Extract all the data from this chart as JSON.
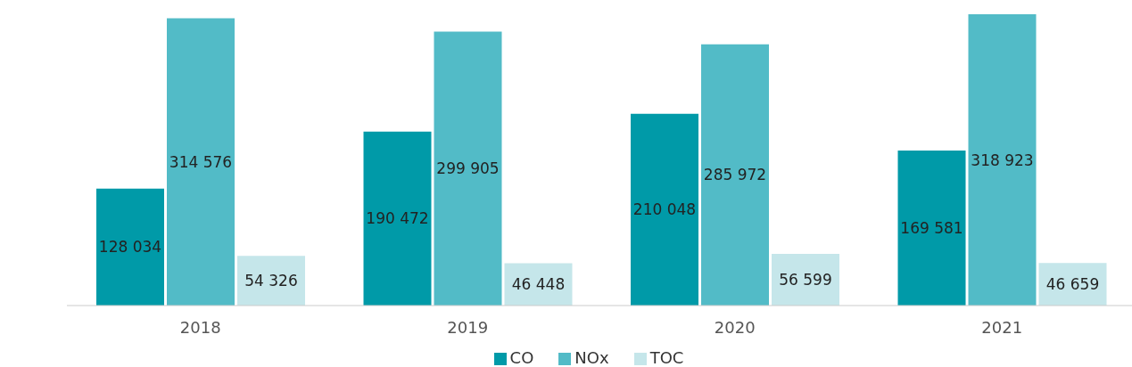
{
  "chart_data": {
    "type": "bar",
    "categories": [
      "2018",
      "2019",
      "2020",
      "2021"
    ],
    "series": [
      {
        "name": "CO",
        "color": "#009aa8",
        "values": [
          128034,
          190472,
          210048,
          169581
        ],
        "value_labels": [
          "128 034",
          "190 472",
          "210 048",
          "169 581"
        ]
      },
      {
        "name": "NOx",
        "color": "#52bbc7",
        "values": [
          314576,
          299905,
          285972,
          318923
        ],
        "value_labels": [
          "314 576",
          "299 905",
          "285 972",
          "318 923"
        ]
      },
      {
        "name": "TOC",
        "color": "#c5e6ea",
        "values": [
          54326,
          46448,
          56599,
          46659
        ],
        "value_labels": [
          "54 326",
          "46 448",
          "56 599",
          "46 659"
        ]
      }
    ],
    "legend": "bottom",
    "grid": false
  }
}
